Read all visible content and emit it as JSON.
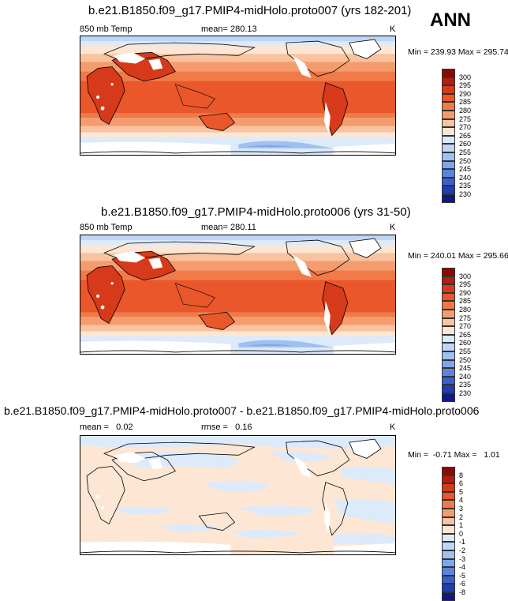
{
  "season": "ANN",
  "panels": [
    {
      "title": "b.e21.B1850.f09_g17.PMIP4-midHolo.proto007 (yrs 182-201)",
      "left": "850 mb Temp",
      "center": "mean= 280.13",
      "units": "K",
      "minmax": "Min = 239.93 Max = 295.74"
    },
    {
      "title": "b.e21.B1850.f09_g17.PMIP4-midHolo.proto006 (yrs 31-50)",
      "left": "850 mb Temp",
      "center": "mean= 280.11",
      "units": "K",
      "minmax": "Min = 240.01 Max = 295.66"
    },
    {
      "title": "b.e21.B1850.f09_g17.PMIP4-midHolo.proto007 - b.e21.B1850.f09_g17.PMIP4-midHolo.proto006",
      "left": "mean =   0.02",
      "center": "rmse =   0.16",
      "units": "K",
      "minmax": "Min =  -0.71 Max =   1.01"
    }
  ],
  "chart_data": [
    {
      "type": "heatmap",
      "title": "b.e21.B1850.f09_g17.PMIP4-midHolo.proto007 (yrs 182-201)",
      "variable": "850 mb Temp",
      "units": "K",
      "mean": 280.13,
      "min": 239.93,
      "max": 295.74,
      "colorbar_levels": [
        300,
        295,
        290,
        285,
        280,
        275,
        270,
        265,
        260,
        255,
        250,
        245,
        240,
        235,
        230
      ],
      "colorbar_colors": [
        "#8c0a04",
        "#b51d0d",
        "#d63a1a",
        "#e9572b",
        "#f07a48",
        "#f59c6e",
        "#f9c39f",
        "#fde7d4",
        "#dceafa",
        "#bfd6f6",
        "#9fc0f1",
        "#7ea6ea",
        "#5a84de",
        "#3c5fcf",
        "#213bb5",
        "#0c1a86"
      ]
    },
    {
      "type": "heatmap",
      "title": "b.e21.B1850.f09_g17.PMIP4-midHolo.proto006 (yrs 31-50)",
      "variable": "850 mb Temp",
      "units": "K",
      "mean": 280.11,
      "min": 240.01,
      "max": 295.66,
      "colorbar_levels": [
        300,
        295,
        290,
        285,
        280,
        275,
        270,
        265,
        260,
        255,
        250,
        245,
        240,
        235,
        230
      ],
      "colorbar_colors": [
        "#8c0a04",
        "#b51d0d",
        "#d63a1a",
        "#e9572b",
        "#f07a48",
        "#f59c6e",
        "#f9c39f",
        "#fde7d4",
        "#dceafa",
        "#bfd6f6",
        "#9fc0f1",
        "#7ea6ea",
        "#5a84de",
        "#3c5fcf",
        "#213bb5",
        "#0c1a86"
      ]
    },
    {
      "type": "heatmap",
      "title": "b.e21.B1850.f09_g17.PMIP4-midHolo.proto007 - b.e21.B1850.f09_g17.PMIP4-midHolo.proto006",
      "units": "K",
      "mean": 0.02,
      "rmse": 0.16,
      "min": -0.71,
      "max": 1.01,
      "colorbar_levels": [
        8,
        6,
        5,
        4,
        3,
        2,
        1,
        0,
        -1,
        -2,
        -3,
        -4,
        -5,
        -6,
        -8
      ],
      "colorbar_colors": [
        "#8c0a04",
        "#b51d0d",
        "#d63a1a",
        "#e9572b",
        "#f07a48",
        "#f59c6e",
        "#f9c39f",
        "#fde7d4",
        "#dceafa",
        "#bfd6f6",
        "#9fc0f1",
        "#7ea6ea",
        "#5a84de",
        "#3c5fcf",
        "#213bb5",
        "#0c1a86"
      ]
    }
  ]
}
